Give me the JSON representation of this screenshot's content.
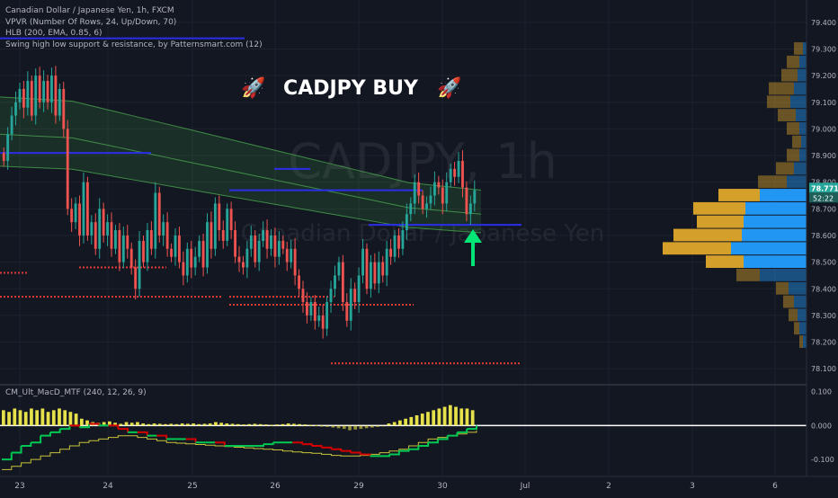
{
  "legend": {
    "symbol": "Canadian Dollar / Japanese Yen, 1h, FXCM",
    "vpvr": "VPVR (Number Of Rows, 24, Up/Down, 70)",
    "hlb": "HLB (200, EMA, 0.85, 6)",
    "swing": "Swing high low support & resistance, by Patternsmart.com (12)"
  },
  "macd_legend": "CM_Ult_MacD_MTF (240, 12, 26, 9)",
  "annotation": "CADJPY BUY",
  "watermark": {
    "ticker": "CADJPY, 1h",
    "name": "Canadian Dollar / Japanese Yen"
  },
  "colors": {
    "background": "#131722",
    "up": "#26a69a",
    "down": "#ef5350",
    "band": "#4caf50",
    "blue_level": "#2a2ee8",
    "red_level": "#e53935",
    "vp_up": "#2196f3",
    "vp_down": "#d4a02a",
    "macd_hist": "#e6e14a",
    "signal_green": "#00c853",
    "signal_red": "#d50000",
    "arrow": "#00e676",
    "last_price_tag": "#26a69a"
  },
  "price_axis": {
    "ticks": [
      "79.400",
      "79.300",
      "79.200",
      "79.100",
      "79.000",
      "78.900",
      "78.800",
      "78.700",
      "78.600",
      "78.500",
      "78.400",
      "78.300",
      "78.200",
      "78.100"
    ],
    "last_price": "78.771",
    "countdown": "52:22"
  },
  "macd_axis": {
    "ticks": [
      "0.100",
      "0.000",
      "-0.100"
    ]
  },
  "time_axis": {
    "labels": [
      "23",
      "24",
      "25",
      "26",
      "29",
      "30",
      "Jul",
      "2",
      "3",
      "6"
    ]
  },
  "chart_data": {
    "type": "candlestick",
    "title": "Canadian Dollar / Japanese Yen, 1h, FXCM",
    "ylim": [
      78.05,
      79.45
    ],
    "x_labels": [
      "23",
      "24",
      "25",
      "26",
      "29",
      "30",
      "Jul",
      "2",
      "3",
      "6"
    ],
    "close_series_approx": [
      78.88,
      78.98,
      79.05,
      79.1,
      79.15,
      79.08,
      79.18,
      79.05,
      79.2,
      79.1,
      79.18,
      79.1,
      79.2,
      79.05,
      79.15,
      79.0,
      78.7,
      78.65,
      78.72,
      78.6,
      78.8,
      78.6,
      78.65,
      78.55,
      78.7,
      78.6,
      78.65,
      78.55,
      78.62,
      78.5,
      78.6,
      78.55,
      78.48,
      78.4,
      78.58,
      78.5,
      78.62,
      78.55,
      78.76,
      78.6,
      78.65,
      78.55,
      78.52,
      78.6,
      78.5,
      78.45,
      78.55,
      78.48,
      78.52,
      78.58,
      78.48,
      78.65,
      78.55,
      78.72,
      78.62,
      78.58,
      78.7,
      78.62,
      78.52,
      78.5,
      78.48,
      78.55,
      78.6,
      78.5,
      78.58,
      78.62,
      78.55,
      78.6,
      78.52,
      78.58,
      78.55,
      78.5,
      78.55,
      78.45,
      78.4,
      78.35,
      78.3,
      78.35,
      78.28,
      78.3,
      78.25,
      78.35,
      78.4,
      78.45,
      78.5,
      78.35,
      78.28,
      78.4,
      78.35,
      78.45,
      78.55,
      78.4,
      78.5,
      78.42,
      78.5,
      78.45,
      78.55,
      78.52,
      78.6,
      78.55,
      78.62,
      78.68,
      78.72,
      78.8,
      78.75,
      78.7,
      78.72,
      78.75,
      78.8,
      78.78,
      78.72,
      78.8,
      78.85,
      78.82,
      78.88,
      78.78,
      78.68,
      78.72,
      78.77
    ],
    "hlb_band": {
      "upper_start": 79.12,
      "upper_end": 78.77,
      "mid_start": 78.98,
      "mid_end": 78.68,
      "lower_start": 78.86,
      "lower_end": 78.61
    },
    "support_resistance": {
      "blue": [
        {
          "price": 78.91,
          "from": 0,
          "to": 168
        },
        {
          "price": 78.77,
          "from": 255,
          "to": 470
        },
        {
          "price": 78.85,
          "from": 305,
          "to": 345
        },
        {
          "price": 78.64,
          "from": 410,
          "to": 580
        },
        {
          "price": 79.34,
          "from": 0,
          "to": 272
        }
      ],
      "red": [
        {
          "price": 78.46,
          "from": 0,
          "to": 32
        },
        {
          "price": 78.48,
          "from": 88,
          "to": 185
        },
        {
          "price": 78.37,
          "from": 0,
          "to": 246
        },
        {
          "price": 78.37,
          "from": 255,
          "to": 372
        },
        {
          "price": 78.34,
          "from": 255,
          "to": 460
        },
        {
          "price": 78.12,
          "from": 368,
          "to": 580
        }
      ]
    },
    "volume_profile": [
      {
        "price": 79.3,
        "up": 4,
        "down": 10
      },
      {
        "price": 79.25,
        "up": 8,
        "down": 14
      },
      {
        "price": 79.2,
        "up": 10,
        "down": 18
      },
      {
        "price": 79.15,
        "up": 14,
        "down": 28
      },
      {
        "price": 79.1,
        "up": 18,
        "down": 26
      },
      {
        "price": 79.05,
        "up": 12,
        "down": 20
      },
      {
        "price": 79.0,
        "up": 8,
        "down": 14
      },
      {
        "price": 78.95,
        "up": 6,
        "down": 10
      },
      {
        "price": 78.9,
        "up": 8,
        "down": 14
      },
      {
        "price": 78.85,
        "up": 14,
        "down": 20
      },
      {
        "price": 78.8,
        "up": 22,
        "down": 32
      },
      {
        "price": 78.75,
        "up": 52,
        "down": 46
      },
      {
        "price": 78.7,
        "up": 68,
        "down": 58
      },
      {
        "price": 78.65,
        "up": 70,
        "down": 52
      },
      {
        "price": 78.6,
        "up": 72,
        "down": 76
      },
      {
        "price": 78.55,
        "up": 84,
        "down": 76
      },
      {
        "price": 78.5,
        "up": 70,
        "down": 42
      },
      {
        "price": 78.45,
        "up": 52,
        "down": 26
      },
      {
        "price": 78.4,
        "up": 20,
        "down": 14
      },
      {
        "price": 78.35,
        "up": 14,
        "down": 12
      },
      {
        "price": 78.3,
        "up": 10,
        "down": 10
      },
      {
        "price": 78.25,
        "up": 8,
        "down": 6
      },
      {
        "price": 78.2,
        "up": 4,
        "down": 4
      }
    ],
    "macd": {
      "ylim": [
        -0.15,
        0.12
      ],
      "histogram": [
        0.045,
        0.04,
        0.05,
        0.045,
        0.04,
        0.05,
        0.045,
        0.05,
        0.04,
        0.045,
        0.05,
        0.045,
        0.04,
        0.035,
        0.02,
        0.015,
        0.01,
        0.008,
        0.01,
        0.012,
        0.008,
        0.005,
        0.01,
        0.008,
        0.01,
        0.006,
        0.004,
        0.006,
        0.005,
        0.004,
        0.005,
        0.004,
        0.006,
        0.005,
        0.006,
        0.004,
        0.005,
        0.006,
        0.01,
        0.008,
        0.006,
        0.005,
        0.004,
        0.003,
        0.004,
        0.005,
        0.004,
        0.003,
        0.002,
        0.003,
        0.004,
        0.006,
        0.005,
        0.004,
        0.003,
        0.002,
        0.001,
        0.0,
        -0.004,
        -0.006,
        -0.008,
        -0.01,
        -0.014,
        -0.012,
        -0.01,
        -0.008,
        -0.006,
        -0.004,
        -0.002,
        0.006,
        0.01,
        0.015,
        0.02,
        0.025,
        0.03,
        0.035,
        0.04,
        0.045,
        0.05,
        0.055,
        0.06,
        0.055,
        0.05,
        0.05,
        0.045
      ],
      "macd_line": [
        -0.1,
        -0.08,
        -0.06,
        -0.05,
        -0.03,
        -0.02,
        -0.01,
        0.0,
        -0.005,
        0.005,
        0.0,
        0.0,
        -0.01,
        -0.02,
        -0.02,
        -0.03,
        -0.03,
        -0.04,
        -0.04,
        -0.04,
        -0.05,
        -0.05,
        -0.05,
        -0.06,
        -0.06,
        -0.06,
        -0.06,
        -0.055,
        -0.05,
        -0.05,
        -0.05,
        -0.055,
        -0.06,
        -0.065,
        -0.07,
        -0.075,
        -0.08,
        -0.085,
        -0.09,
        -0.09,
        -0.085,
        -0.075,
        -0.07,
        -0.06,
        -0.05,
        -0.04,
        -0.03,
        -0.02,
        -0.01,
        0.0
      ],
      "signal_line": [
        -0.13,
        -0.12,
        -0.11,
        -0.1,
        -0.09,
        -0.08,
        -0.07,
        -0.06,
        -0.05,
        -0.045,
        -0.04,
        -0.035,
        -0.03,
        -0.03,
        -0.035,
        -0.04,
        -0.045,
        -0.05,
        -0.052,
        -0.054,
        -0.056,
        -0.058,
        -0.06,
        -0.062,
        -0.064,
        -0.066,
        -0.068,
        -0.07,
        -0.072,
        -0.075,
        -0.078,
        -0.08,
        -0.082,
        -0.085,
        -0.088,
        -0.09,
        -0.09,
        -0.088,
        -0.085,
        -0.08,
        -0.075,
        -0.07,
        -0.06,
        -0.05,
        -0.04,
        -0.035,
        -0.03,
        -0.025,
        -0.02,
        -0.015
      ]
    }
  }
}
